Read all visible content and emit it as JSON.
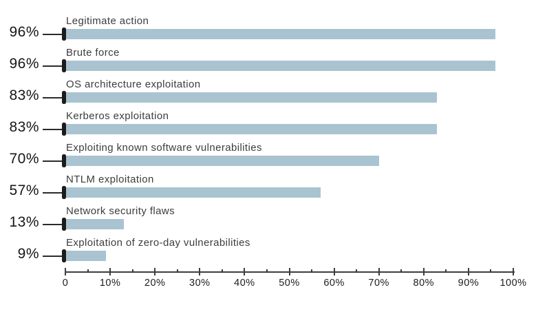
{
  "chart_data": {
    "type": "bar",
    "orientation": "horizontal",
    "title": "",
    "xlabel": "",
    "ylabel": "",
    "categories": [
      "Legitimate action",
      "Brute force",
      "OS architecture exploitation",
      "Kerberos exploitation",
      "Exploiting known software vulnerabilities",
      "NTLM exploitation",
      "Network security flaws",
      "Exploitation of zero-day vulnerabilities"
    ],
    "values": [
      96,
      96,
      83,
      83,
      70,
      57,
      13,
      9
    ],
    "value_labels": [
      "96%",
      "96%",
      "83%",
      "83%",
      "70%",
      "57%",
      "13%",
      "9%"
    ],
    "xlim": [
      0,
      100
    ],
    "x_tick_labels": [
      "0",
      "10%",
      "20%",
      "30%",
      "40%",
      "50%",
      "60%",
      "70%",
      "80%",
      "90%",
      "100%"
    ],
    "x_major_tick_step": 10,
    "x_minor_tick_step": 5,
    "grid": false,
    "legend": false,
    "colors": {
      "bar_fill": "#a9c3d1",
      "marker": "#1c1c1c",
      "leader_line": "#2b2b2b",
      "axis": "#3d3d3d",
      "value_text": "#161616",
      "category_text": "#3c3c3c",
      "tick_text": "#1c1c1c"
    }
  }
}
